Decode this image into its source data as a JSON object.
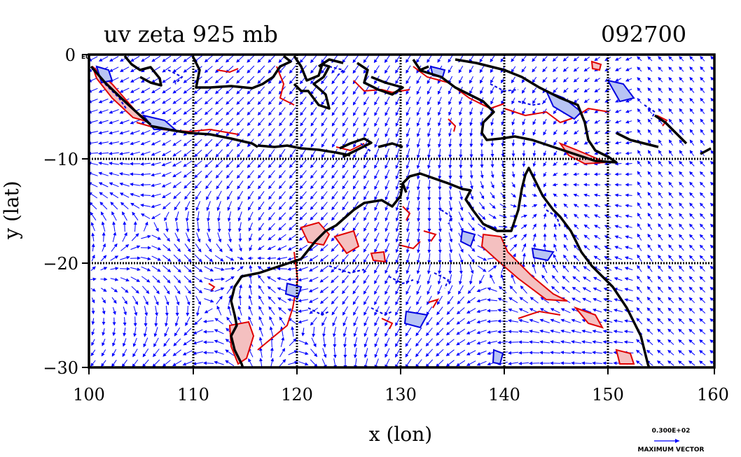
{
  "title_left": "uv zeta 925 mb",
  "title_right": "092700",
  "corner_label": "E0",
  "x_axis": {
    "label": "x (lon)",
    "ticks": [
      "100",
      "110",
      "120",
      "130",
      "140",
      "150",
      "160"
    ],
    "range": [
      100,
      160
    ]
  },
  "y_axis": {
    "label": "y (lat)",
    "ticks": [
      "0",
      "−10",
      "−20",
      "−30"
    ],
    "range": [
      -30,
      0
    ]
  },
  "grid": {
    "lon_lines": [
      110,
      120,
      130,
      140,
      150
    ],
    "lat_lines": [
      -10,
      -20
    ]
  },
  "legend": {
    "value": "0.300E+02",
    "caption": "MAXIMUM VECTOR"
  },
  "colors": {
    "vectors": "#0000ff",
    "positive_contour": "#e00000",
    "positive_fill": "#f4c0c0",
    "negative_contour": "#0000e0",
    "negative_fill": "#b8c4f4",
    "coast": "#000000"
  }
}
